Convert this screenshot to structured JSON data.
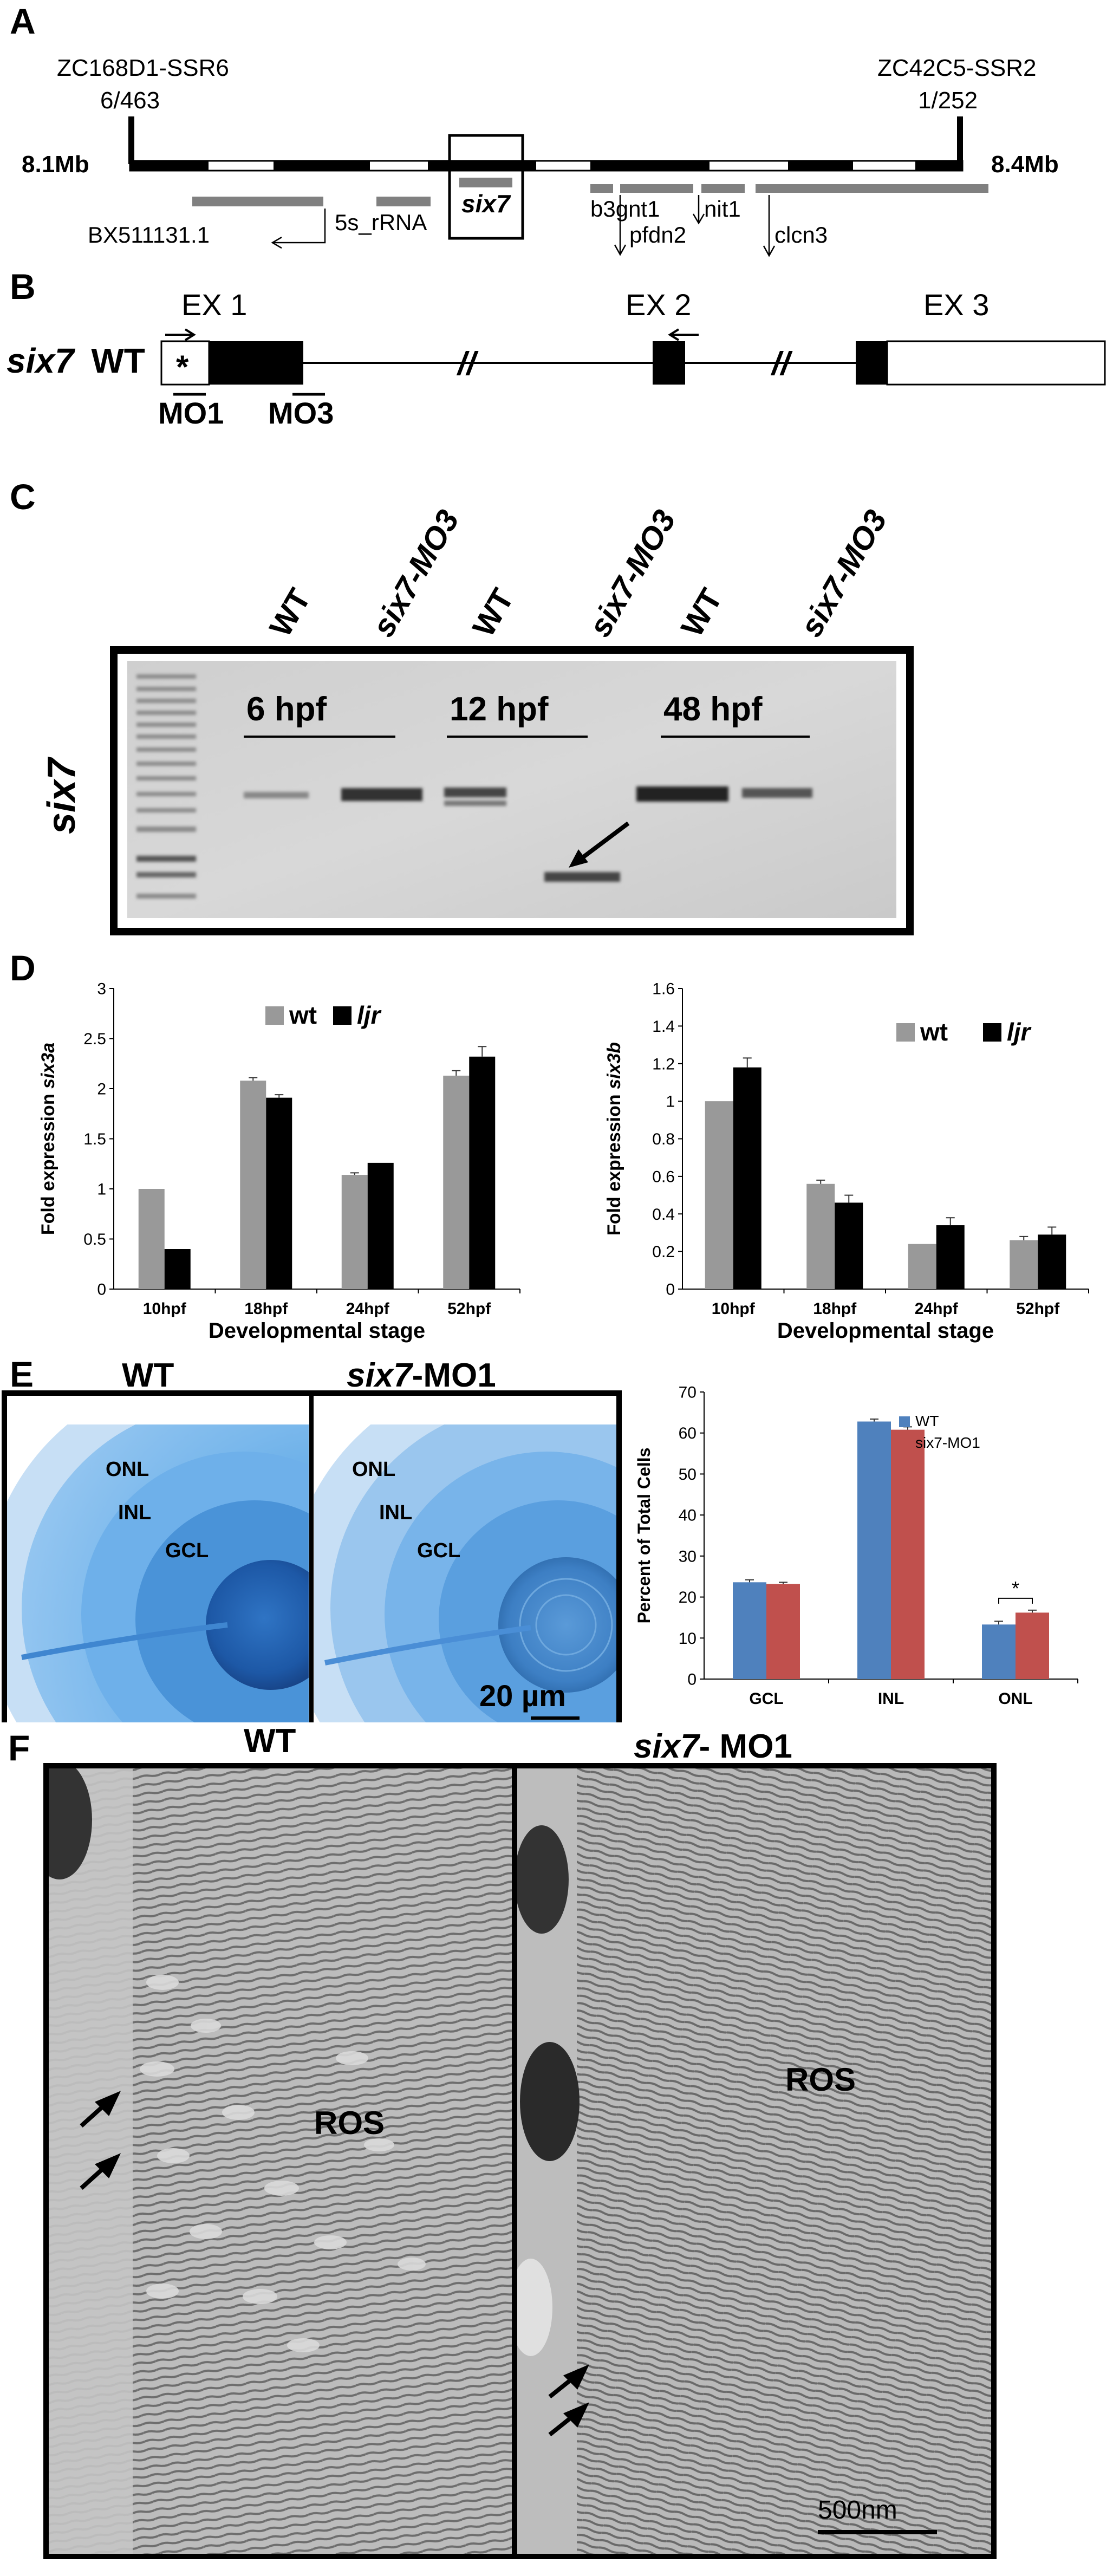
{
  "panels": {
    "A": {
      "letter": "A",
      "left_marker_name": "ZC168D1-SSR6",
      "left_marker_ratio": "6/463",
      "right_marker_name": "ZC42C5-SSR2",
      "right_marker_ratio": "1/252",
      "left_position": "8.1Mb",
      "right_position": "8.4Mb",
      "gene_six7": "six7",
      "gene_bx": "BX511131.1",
      "gene_5s": "5s_rRNA",
      "gene_b3gnt1": "b3gnt1",
      "gene_nit1": "nit1",
      "gene_pfdn2": "pfdn2",
      "gene_clcn3": "clcn3"
    },
    "B": {
      "letter": "B",
      "gene_label": "six7",
      "gene_suffix": "WT",
      "ex1": "EX 1",
      "ex2": "EX 2",
      "ex3": "EX 3",
      "asterisk": "*",
      "mo1": "MO1",
      "mo3": "MO3",
      "break_mark": "//"
    },
    "C": {
      "letter": "C",
      "gene_label": "six7",
      "lanes": [
        "WT",
        "six7-MO3",
        "WT",
        "six7-MO3",
        "WT",
        "six7-MO3"
      ],
      "stages": [
        "6 hpf",
        "12 hpf",
        "48 hpf"
      ]
    },
    "D": {
      "letter": "D",
      "legend_wt": "wt",
      "legend_ljr": "ljr",
      "wt_color": "#999999",
      "ljr_color": "#000000"
    },
    "E": {
      "letter": "E",
      "wt_title": "WT",
      "mo_title_gene": "six7",
      "mo_title_suffix": "-MO1",
      "layers": [
        "ONL",
        "INL",
        "GCL"
      ],
      "scale_bar": "20 µm",
      "wt_color": "#4f81bd",
      "mo_color": "#c0504d"
    },
    "F": {
      "letter": "F",
      "wt_title": "WT",
      "mo_title_gene": "six7",
      "mo_title_suffix": "- MO1",
      "ros_label": "ROS",
      "scale_bar": "500nm"
    }
  },
  "chart_data": [
    {
      "type": "bar",
      "ylabel_prefix": "Fold expression ",
      "ylabel_gene": "six3a",
      "xlabel": "Developmental stage",
      "categories": [
        "10hpf",
        "18hpf",
        "24hpf",
        "52hpf"
      ],
      "ylim": [
        0,
        3
      ],
      "yticks": [
        0,
        0.5,
        1,
        1.5,
        2,
        2.5,
        3
      ],
      "legend": "top-center",
      "series": [
        {
          "name": "wt",
          "color": "#999999",
          "values": [
            1.0,
            2.08,
            1.14,
            2.13
          ],
          "errors": [
            0,
            0.03,
            0.02,
            0.05
          ]
        },
        {
          "name": "ljr",
          "color": "#000000",
          "values": [
            0.4,
            1.91,
            1.26,
            2.32
          ],
          "errors": [
            0,
            0.03,
            0,
            0.1
          ]
        }
      ]
    },
    {
      "type": "bar",
      "ylabel_prefix": "Fold expression ",
      "ylabel_gene": "six3b",
      "xlabel": "Developmental stage",
      "categories": [
        "10hpf",
        "18hpf",
        "24hpf",
        "52hpf"
      ],
      "ylim": [
        0,
        1.6
      ],
      "yticks": [
        0,
        0.2,
        0.4,
        0.6,
        0.8,
        1,
        1.2,
        1.4,
        1.6
      ],
      "legend": "top-center",
      "series": [
        {
          "name": "wt",
          "color": "#999999",
          "values": [
            1.0,
            0.56,
            0.24,
            0.26
          ],
          "errors": [
            0,
            0.02,
            0,
            0.02
          ]
        },
        {
          "name": "ljr",
          "color": "#000000",
          "values": [
            1.18,
            0.46,
            0.34,
            0.29
          ],
          "errors": [
            0.05,
            0.04,
            0.04,
            0.04
          ]
        }
      ]
    },
    {
      "type": "bar",
      "ylabel": "Percent of Total Cells",
      "categories": [
        "GCL",
        "INL",
        "ONL"
      ],
      "ylim": [
        0,
        70
      ],
      "yticks": [
        0,
        10,
        20,
        30,
        40,
        50,
        60,
        70
      ],
      "legend": "top-right",
      "significance": {
        "category": "ONL",
        "mark": "*"
      },
      "series": [
        {
          "name": "WT",
          "color": "#4f81bd",
          "values": [
            23.6,
            62.8,
            13.3
          ],
          "errors": [
            0.6,
            0.6,
            0.8
          ]
        },
        {
          "name": "six7-MO1",
          "color": "#c0504d",
          "values": [
            23.2,
            60.8,
            16.2
          ],
          "errors": [
            0.4,
            0.7,
            0.6
          ]
        }
      ]
    }
  ]
}
